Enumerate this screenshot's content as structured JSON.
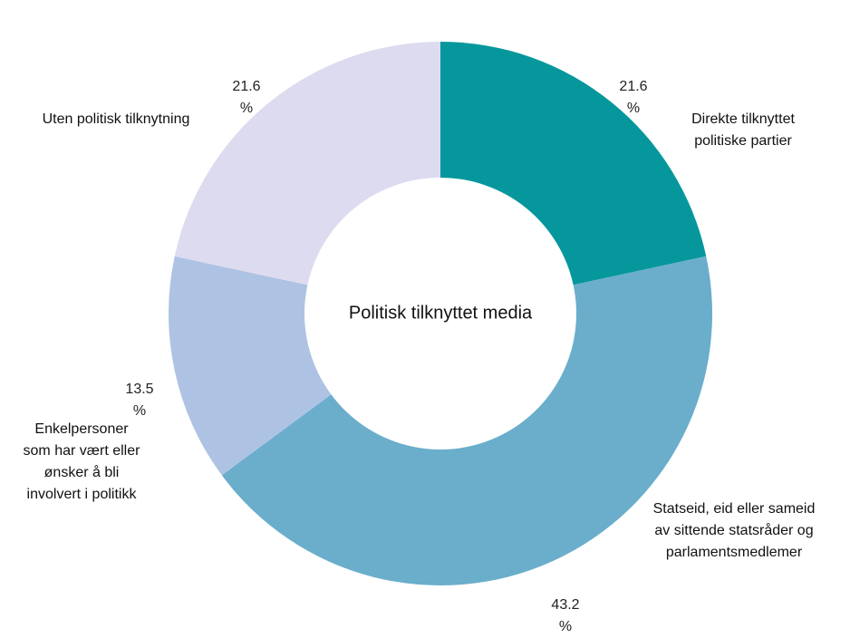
{
  "chart_data": {
    "type": "donut",
    "title": "Politisk tilknyttet media",
    "categories": [
      "Direkte tilknyttet politiske partier",
      "Statseid, eid eller sameid av sittende statsråder og parlamentsmedlemer",
      "Enkelpersoner som har vært eller ønsker å bli involvert i politikk",
      "Uten politisk tilknytning"
    ],
    "values": [
      21.6,
      43.2,
      13.5,
      21.6
    ],
    "value_labels": [
      "21.6 %",
      "43.2 %",
      "13.5 %",
      "21.6 %"
    ],
    "colors": [
      "#05979c",
      "#6aaecb",
      "#aec3e3",
      "#dddbf0"
    ]
  }
}
